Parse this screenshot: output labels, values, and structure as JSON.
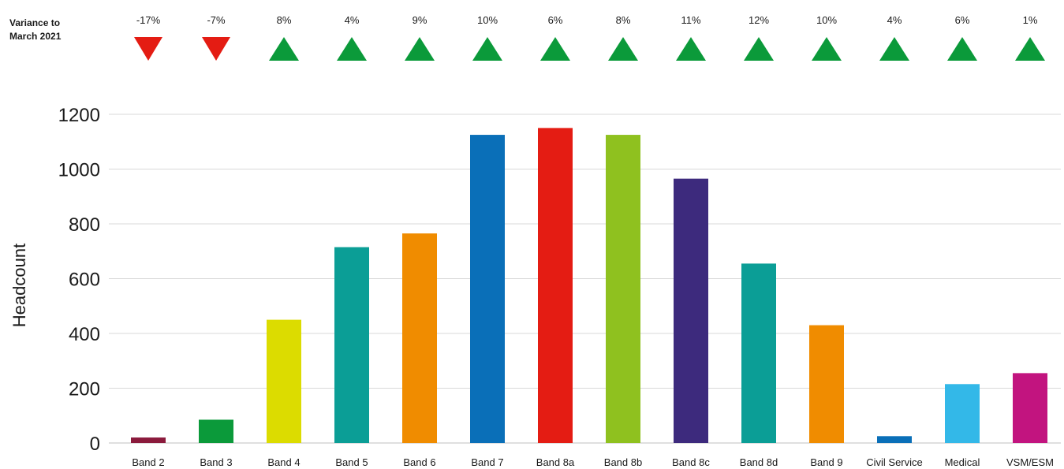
{
  "chart_data": {
    "type": "bar",
    "title": "",
    "xlabel": "",
    "ylabel": "Headcount",
    "ylim": [
      0,
      1200
    ],
    "yticks": [
      0,
      200,
      400,
      600,
      800,
      1000,
      1200
    ],
    "grid": true,
    "legend": "none",
    "categories": [
      "Band 2",
      "Band 3",
      "Band 4",
      "Band 5",
      "Band 6",
      "Band 7",
      "Band 8a",
      "Band 8b",
      "Band 8c",
      "Band 8d",
      "Band 9",
      "Civil Service",
      "Medical",
      "VSM/ESM"
    ],
    "values": [
      20,
      85,
      450,
      715,
      765,
      1125,
      1150,
      1125,
      965,
      655,
      430,
      25,
      215,
      255
    ],
    "bar_colors": [
      "#8b1a3c",
      "#0b9a3a",
      "#dcdc00",
      "#0b9e96",
      "#f08c00",
      "#0a6fb8",
      "#e41c13",
      "#8fc11f",
      "#3d2a7d",
      "#0b9e96",
      "#f08c00",
      "#0a6fb8",
      "#33b8e8",
      "#c2147f"
    ],
    "variance": {
      "title_line1": "Variance to",
      "title_line2": "March 2021",
      "labels": [
        "-17%",
        "-7%",
        "8%",
        "4%",
        "9%",
        "10%",
        "6%",
        "8%",
        "11%",
        "12%",
        "10%",
        "4%",
        "6%",
        "1%"
      ],
      "directions": [
        "down",
        "down",
        "up",
        "up",
        "up",
        "up",
        "up",
        "up",
        "up",
        "up",
        "up",
        "up",
        "up",
        "up"
      ],
      "up_color": "#0b9a3a",
      "down_color": "#e41c13"
    }
  }
}
